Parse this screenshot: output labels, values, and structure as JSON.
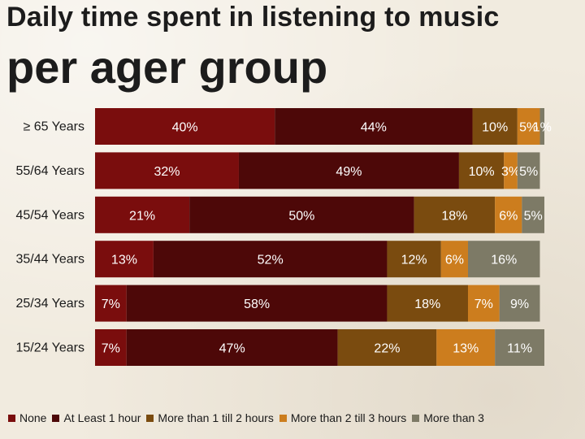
{
  "title": {
    "line1": "Daily time spent in listening to music",
    "line2": "per ager group"
  },
  "chart_data": {
    "type": "bar",
    "orientation": "horizontal",
    "stacked": true,
    "percent_stacked": true,
    "title": "Daily time spent in listening to music per ager group",
    "categories": [
      "≥ 65 Years",
      "55/64 Years",
      "45/54 Years",
      "35/44 Years",
      "25/34 Years",
      "15/24 Years"
    ],
    "series": [
      {
        "name": "None",
        "color": "#7a0d0d",
        "values": [
          40,
          32,
          21,
          13,
          7,
          7
        ],
        "labels": [
          "40%",
          "32%",
          "21%",
          "13%",
          "7%",
          "7%"
        ]
      },
      {
        "name": "At Least 1 hour",
        "color": "#4d0808",
        "values": [
          44,
          49,
          50,
          52,
          58,
          47
        ],
        "labels": [
          "44%",
          "49%",
          "50%",
          "52%",
          "58%",
          "47%"
        ]
      },
      {
        "name": "More than 1 till 2 hours",
        "color": "#7a4b0f",
        "values": [
          10,
          10,
          18,
          12,
          18,
          22
        ],
        "labels": [
          "10%",
          "10%",
          "18%",
          "12%",
          "18%",
          "22%"
        ]
      },
      {
        "name": "More than 2 till 3 hours",
        "color": "#cc7d1e",
        "values": [
          5,
          3,
          6,
          6,
          7,
          13
        ],
        "labels": [
          "5%",
          "3%",
          "6%",
          "6%",
          "7%",
          "13%"
        ]
      },
      {
        "name": "More than 3",
        "color": "#7d7a66",
        "values": [
          1,
          5,
          5,
          16,
          9,
          11
        ],
        "labels": [
          "1%",
          "5%",
          "5%",
          "16%",
          "9%",
          "11%"
        ]
      }
    ],
    "xlim": [
      0,
      100
    ],
    "grid": false,
    "legend_position": "bottom"
  }
}
